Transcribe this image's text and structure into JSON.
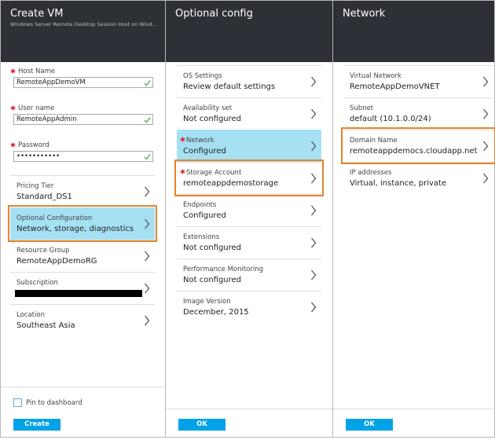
{
  "panels": [
    {
      "title": "Create VM",
      "subtitle": "Windows Server Remote Desktop Session Host on Wind...",
      "inputs": [
        {
          "label": "Host Name",
          "value": "RemoteAppDemoVM",
          "required": true
        },
        {
          "label": "User name",
          "value": "RemoteAppAdmin",
          "required": true
        },
        {
          "label": "Password",
          "value": "•••••••••••",
          "required": true
        }
      ],
      "items": [
        {
          "label": "Pricing Tier",
          "value": "Standard_DS1"
        },
        {
          "label": "Optional Configuration",
          "value": "Network, storage, diagnostics",
          "highlighted": true,
          "outlined": true
        },
        {
          "label": "Resource Group",
          "value": "RemoteAppDemoRG"
        },
        {
          "label": "Subscription",
          "redacted": true
        },
        {
          "label": "Location",
          "value": "Southeast Asia"
        }
      ],
      "checkbox": "Pin to dashboard",
      "button": "Create"
    },
    {
      "title": "Optional config",
      "items": [
        {
          "label": "OS Settings",
          "value": "Review default settings"
        },
        {
          "label": "Availability set",
          "value": "Not configured"
        },
        {
          "label": "Network",
          "value": "Configured",
          "required": true,
          "highlighted": true
        },
        {
          "label": "Storage Account",
          "value": "remoteappdemostorage",
          "required": true,
          "outlined": true
        },
        {
          "label": "Endpoints",
          "value": "Configured"
        },
        {
          "label": "Extensions",
          "value": "Not configured"
        },
        {
          "label": "Performance Monitoring",
          "value": "Not configured"
        },
        {
          "label": "Image Version",
          "value": "December, 2015"
        }
      ],
      "button": "OK"
    },
    {
      "title": "Network",
      "items": [
        {
          "label": "Virtual Network",
          "value": "RemoteAppDemoVNET"
        },
        {
          "label": "Subnet",
          "value": "default (10.1.0.0/24)"
        },
        {
          "label": "Domain Name",
          "value": "remoteappdemocs.cloudapp.net",
          "outlined": true
        },
        {
          "label": "IP addresses",
          "value": "Virtual, instance, private"
        }
      ],
      "button": "OK"
    }
  ]
}
